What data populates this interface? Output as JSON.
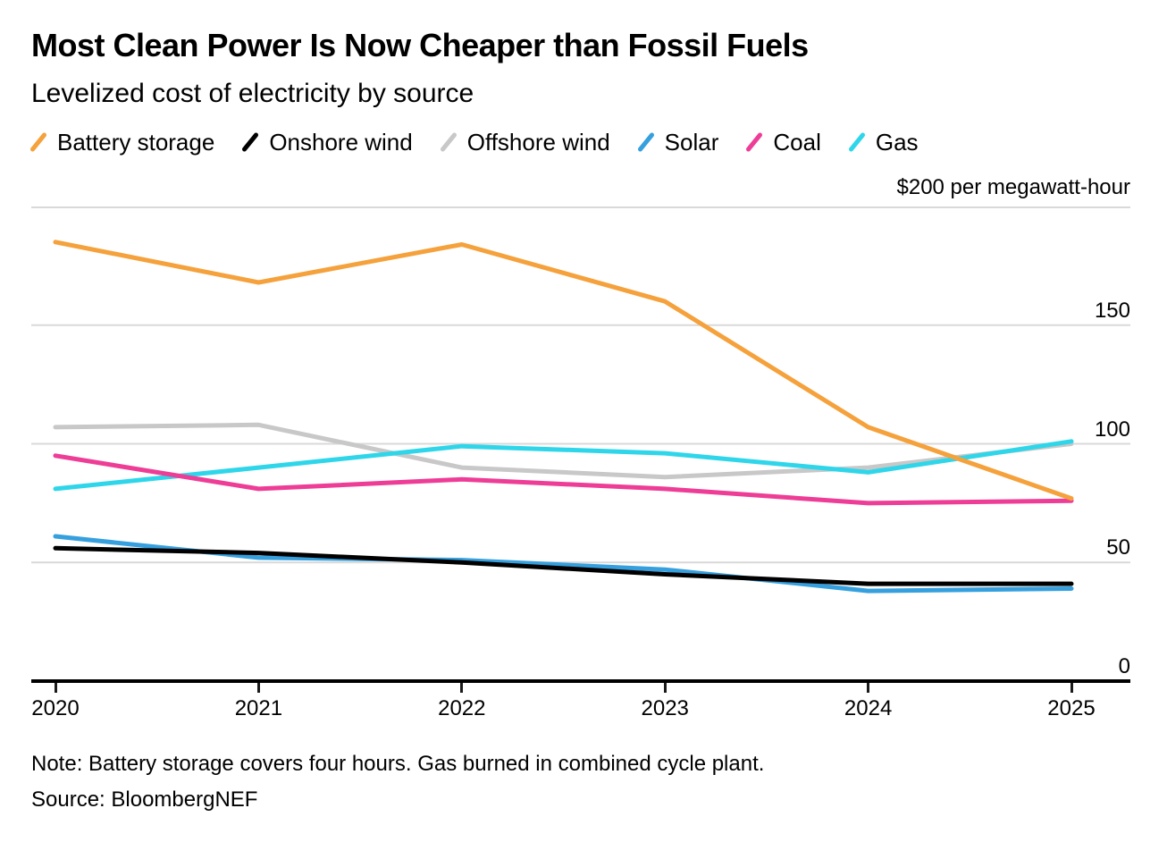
{
  "header": {
    "title": "Most Clean Power Is Now Cheaper than Fossil Fuels",
    "subtitle": "Levelized cost of electricity by source"
  },
  "legend": [
    {
      "label": "Battery storage",
      "color": "#F5A13C"
    },
    {
      "label": "Onshore wind",
      "color": "#000000"
    },
    {
      "label": "Offshore wind",
      "color": "#C8C8C8"
    },
    {
      "label": "Solar",
      "color": "#36A0DE"
    },
    {
      "label": "Coal",
      "color": "#EE3D96"
    },
    {
      "label": "Gas",
      "color": "#2FD6EA"
    }
  ],
  "axis": {
    "unit_label": "$200 per megawatt-hour",
    "grid_values": [
      200,
      150,
      100,
      50
    ],
    "y_ticks": [
      150,
      100,
      50,
      0
    ],
    "x_ticks": [
      "2020",
      "2021",
      "2022",
      "2023",
      "2024",
      "2025"
    ],
    "grid_color": "#D9D9D9"
  },
  "chart_data": {
    "type": "line",
    "title": "Most Clean Power Is Now Cheaper than Fossil Fuels",
    "subtitle": "Levelized cost of electricity by source",
    "xlabel": "",
    "ylabel": "$ per megawatt-hour",
    "ylim": [
      0,
      200
    ],
    "grid": "horizontal",
    "legend_position": "top",
    "x": [
      2020,
      2021,
      2022,
      2023,
      2024,
      2025
    ],
    "series": [
      {
        "name": "Battery storage",
        "color": "#F5A13C",
        "z": 4,
        "values": [
          185,
          168,
          184,
          160,
          107,
          77
        ]
      },
      {
        "name": "Onshore wind",
        "color": "#000000",
        "z": 6,
        "values": [
          56,
          54,
          50,
          45,
          41,
          41
        ]
      },
      {
        "name": "Offshore wind",
        "color": "#C8C8C8",
        "z": 1,
        "values": [
          107,
          108,
          90,
          86,
          90,
          100
        ]
      },
      {
        "name": "Solar",
        "color": "#36A0DE",
        "z": 5,
        "values": [
          61,
          52,
          51,
          47,
          38,
          39
        ]
      },
      {
        "name": "Coal",
        "color": "#EE3D96",
        "z": 3,
        "values": [
          95,
          81,
          85,
          81,
          75,
          76
        ]
      },
      {
        "name": "Gas",
        "color": "#2FD6EA",
        "z": 2,
        "values": [
          81,
          90,
          99,
          96,
          88,
          101
        ]
      }
    ]
  },
  "footer": {
    "note": "Note: Battery storage covers four hours. Gas burned in combined cycle plant.",
    "source": "Source: BloombergNEF"
  }
}
